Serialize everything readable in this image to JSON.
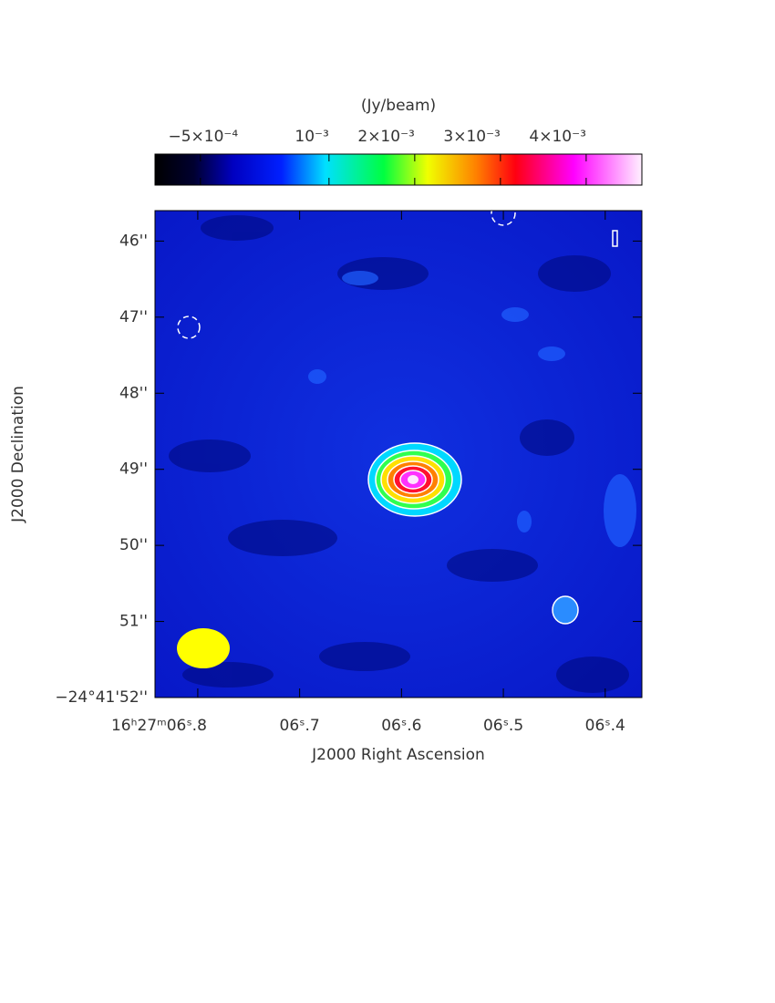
{
  "chart_data": {
    "type": "image",
    "colorbar": {
      "label": "(Jy/beam)",
      "lim": [
        -0.00103,
        0.00465
      ],
      "ticks": [
        {
          "value": -0.0005,
          "label": "−5×10⁻⁴"
        },
        {
          "value": 0.001,
          "label": "10⁻³"
        },
        {
          "value": 0.002,
          "label": "2×10⁻³"
        },
        {
          "value": 0.003,
          "label": "3×10⁻³"
        },
        {
          "value": 0.004,
          "label": "4×10⁻³"
        }
      ]
    },
    "xlabel": "J2000 Right Ascension",
    "ylabel": "J2000 Declination",
    "xlim": [
      6.842,
      6.364
    ],
    "xticks": [
      {
        "value": 6.8,
        "label": "16ʰ27ᵐ06ˢ.8"
      },
      {
        "value": 6.7,
        "label": "06ˢ.7"
      },
      {
        "value": 6.6,
        "label": "06ˢ.6"
      },
      {
        "value": 6.5,
        "label": "06ˢ.5"
      },
      {
        "value": 6.4,
        "label": "06ˢ.4"
      }
    ],
    "ylim": [
      45.6,
      52
    ],
    "yticks": [
      {
        "value": 46,
        "label": "46''"
      },
      {
        "value": 47,
        "label": "47''"
      },
      {
        "value": 48,
        "label": "48''"
      },
      {
        "value": 49,
        "label": "49''"
      },
      {
        "value": 50,
        "label": "50''"
      },
      {
        "value": 51,
        "label": "51''"
      },
      {
        "value": 52,
        "label": "−24°41'52''"
      }
    ]
  }
}
